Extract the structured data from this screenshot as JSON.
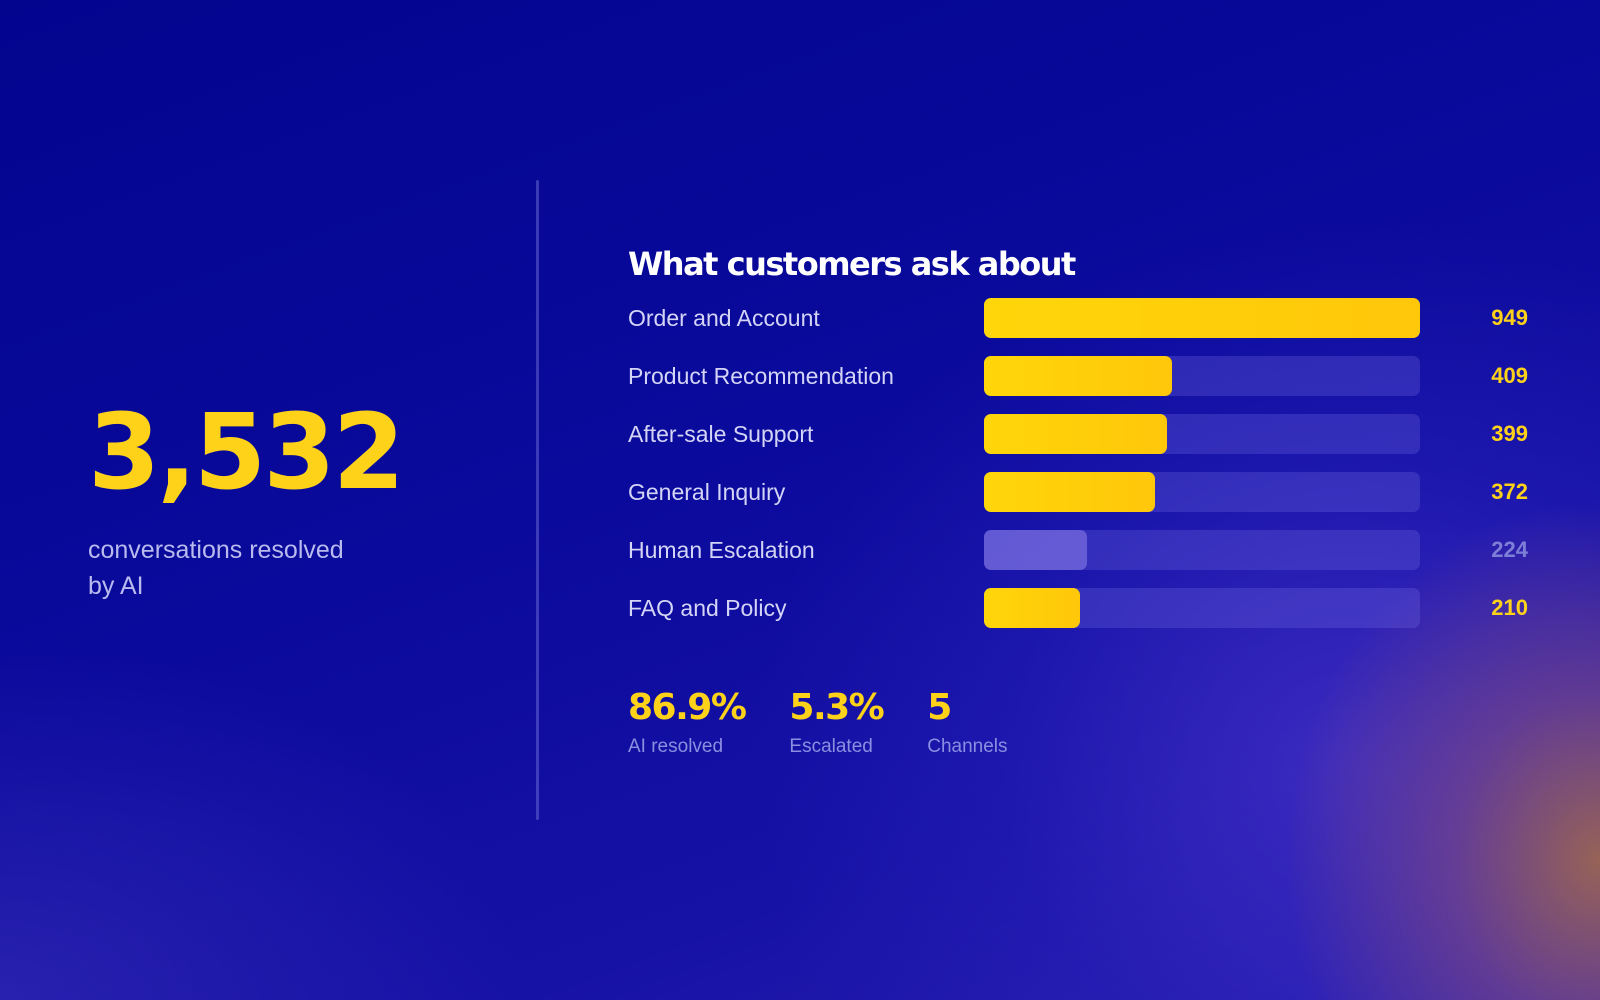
{
  "hero": {
    "value": "3,532",
    "label": "conversations resolved by AI"
  },
  "chart_data": {
    "type": "bar",
    "title": "What customers ask about",
    "categories": [
      "Order and Account",
      "Product Recommendation",
      "After-sale Support",
      "General Inquiry",
      "Human Escalation",
      "FAQ and Policy"
    ],
    "values": [
      949,
      409,
      399,
      372,
      224,
      210
    ],
    "value_labels": [
      "949",
      "409",
      "399",
      "372",
      "224",
      "210"
    ],
    "xlim": [
      0,
      949
    ],
    "orientation": "horizontal",
    "highlighted": [
      true,
      true,
      true,
      true,
      false,
      true
    ],
    "colors": {
      "highlight": "#ffd21a",
      "muted": "#8c82eb",
      "track": "#3a33c8"
    }
  },
  "stats": [
    {
      "value": "86.9%",
      "label": "AI resolved"
    },
    {
      "value": "5.3%",
      "label": "Escalated"
    },
    {
      "value": "5",
      "label": "Channels"
    }
  ]
}
